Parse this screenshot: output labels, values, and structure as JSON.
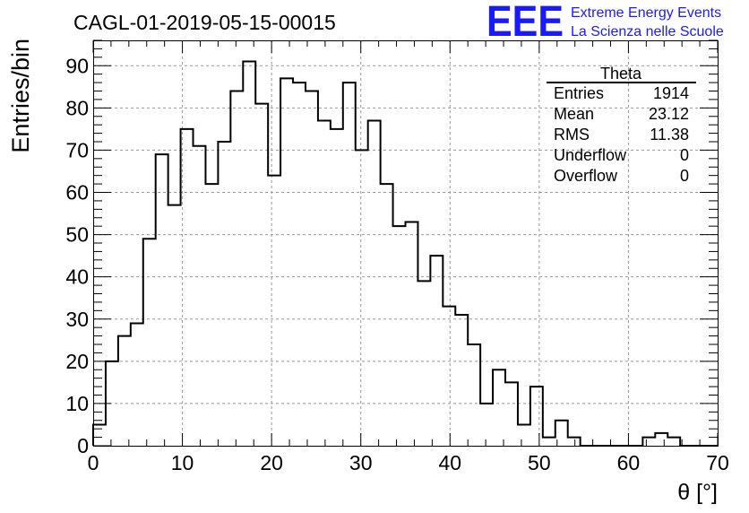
{
  "chart_data": {
    "type": "bar",
    "title": "CAGL-01-2019-05-15-00015",
    "xlabel": "θ [°]",
    "ylabel": "Entries/bin",
    "xlim": [
      0,
      70
    ],
    "ylim": [
      0,
      96
    ],
    "x_ticks": [
      0,
      10,
      20,
      30,
      40,
      50,
      60,
      70
    ],
    "y_ticks": [
      0,
      10,
      20,
      30,
      40,
      50,
      60,
      70,
      80,
      90
    ],
    "grid": true,
    "bin_width": 1.4,
    "values": [
      5,
      20,
      26,
      29,
      49,
      69,
      57,
      75,
      71,
      62,
      72,
      84,
      91,
      81,
      64,
      87,
      86,
      84,
      77,
      75,
      86,
      70,
      77,
      62,
      52,
      53,
      39,
      45,
      33,
      31,
      24,
      10,
      18,
      15,
      5,
      14,
      2,
      6,
      2,
      0,
      0,
      0,
      0,
      0,
      2,
      3,
      2,
      0,
      0,
      0
    ],
    "stats_box": {
      "title": "Theta",
      "position": "top-right",
      "rows": [
        {
          "label": "Entries",
          "value": "1914"
        },
        {
          "label": "Mean",
          "value": "23.12"
        },
        {
          "label": "RMS",
          "value": "11.38"
        },
        {
          "label": "Underflow",
          "value": "0"
        },
        {
          "label": "Overflow",
          "value": "0"
        }
      ]
    }
  },
  "logo": {
    "mark": "EEE",
    "line1": "Extreme Energy Events",
    "line2": "La Scienza nelle Scuole",
    "color": "#1a1aff"
  }
}
